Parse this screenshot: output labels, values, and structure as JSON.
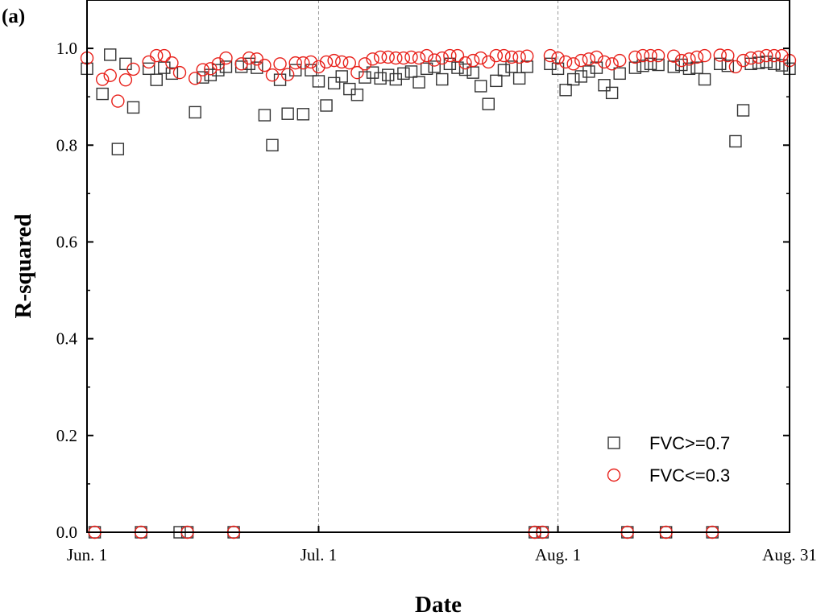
{
  "chart_data": {
    "type": "scatter",
    "panel_label": "(a)",
    "xlabel": "Date",
    "ylabel": "R-squared",
    "xlim": [
      1,
      92
    ],
    "ylim": [
      0,
      1.1
    ],
    "x_ticks": [
      {
        "day": 1,
        "label": "Jun. 1"
      },
      {
        "day": 31,
        "label": "Jul. 1"
      },
      {
        "day": 62,
        "label": "Aug. 1"
      },
      {
        "day": 92,
        "label": "Aug. 31"
      }
    ],
    "y_ticks": [
      {
        "value": 0.0,
        "label": "0.0"
      },
      {
        "value": 0.2,
        "label": "0.2"
      },
      {
        "value": 0.4,
        "label": "0.4"
      },
      {
        "value": 0.6,
        "label": "0.6"
      },
      {
        "value": 0.8,
        "label": "0.8"
      },
      {
        "value": 1.0,
        "label": "1.0"
      }
    ],
    "vertical_gridlines_at_days": [
      31,
      62
    ],
    "legend_position": "bottom-right",
    "series": [
      {
        "name": "FVC>=0.7",
        "label": "FVC>=0.7",
        "marker": "square",
        "color": "#333333",
        "points": [
          [
            1,
            0.958
          ],
          [
            2,
            0.0
          ],
          [
            3,
            0.906
          ],
          [
            4,
            0.987
          ],
          [
            5,
            0.792
          ],
          [
            6,
            0.968
          ],
          [
            7,
            0.878
          ],
          [
            8,
            0.0
          ],
          [
            9,
            0.958
          ],
          [
            10,
            0.935
          ],
          [
            11,
            0.96
          ],
          [
            12,
            0.948
          ],
          [
            13,
            0.0
          ],
          [
            14,
            0.0
          ],
          [
            15,
            0.868
          ],
          [
            16,
            0.94
          ],
          [
            17,
            0.945
          ],
          [
            18,
            0.955
          ],
          [
            19,
            0.962
          ],
          [
            20,
            0.0
          ],
          [
            21,
            0.962
          ],
          [
            22,
            0.968
          ],
          [
            23,
            0.96
          ],
          [
            24,
            0.862
          ],
          [
            25,
            0.8
          ],
          [
            26,
            0.935
          ],
          [
            27,
            0.865
          ],
          [
            28,
            0.955
          ],
          [
            29,
            0.864
          ],
          [
            30,
            0.955
          ],
          [
            31,
            0.932
          ],
          [
            32,
            0.882
          ],
          [
            33,
            0.928
          ],
          [
            34,
            0.942
          ],
          [
            35,
            0.916
          ],
          [
            36,
            0.904
          ],
          [
            37,
            0.94
          ],
          [
            38,
            0.95
          ],
          [
            39,
            0.938
          ],
          [
            40,
            0.945
          ],
          [
            41,
            0.936
          ],
          [
            42,
            0.948
          ],
          [
            43,
            0.952
          ],
          [
            44,
            0.93
          ],
          [
            45,
            0.958
          ],
          [
            46,
            0.962
          ],
          [
            47,
            0.936
          ],
          [
            48,
            0.968
          ],
          [
            49,
            0.96
          ],
          [
            50,
            0.956
          ],
          [
            51,
            0.95
          ],
          [
            52,
            0.922
          ],
          [
            53,
            0.885
          ],
          [
            54,
            0.933
          ],
          [
            55,
            0.955
          ],
          [
            56,
            0.962
          ],
          [
            57,
            0.938
          ],
          [
            58,
            0.962
          ],
          [
            59,
            0.0
          ],
          [
            60,
            0.0
          ],
          [
            61,
            0.968
          ],
          [
            62,
            0.958
          ],
          [
            63,
            0.914
          ],
          [
            64,
            0.936
          ],
          [
            65,
            0.942
          ],
          [
            66,
            0.952
          ],
          [
            67,
            0.96
          ],
          [
            68,
            0.924
          ],
          [
            69,
            0.908
          ],
          [
            70,
            0.948
          ],
          [
            71,
            0.0
          ],
          [
            72,
            0.96
          ],
          [
            73,
            0.964
          ],
          [
            74,
            0.968
          ],
          [
            75,
            0.966
          ],
          [
            76,
            0.0
          ],
          [
            77,
            0.962
          ],
          [
            78,
            0.966
          ],
          [
            79,
            0.958
          ],
          [
            80,
            0.96
          ],
          [
            81,
            0.936
          ],
          [
            82,
            0.0
          ],
          [
            83,
            0.968
          ],
          [
            84,
            0.964
          ],
          [
            85,
            0.808
          ],
          [
            86,
            0.872
          ],
          [
            87,
            0.968
          ],
          [
            88,
            0.97
          ],
          [
            89,
            0.972
          ],
          [
            90,
            0.968
          ],
          [
            91,
            0.965
          ],
          [
            92,
            0.958
          ]
        ]
      },
      {
        "name": "FVC<=0.3",
        "label": "FVC<=0.3",
        "marker": "circle",
        "color": "#e8201a",
        "points": [
          [
            1,
            0.98
          ],
          [
            2,
            0.0
          ],
          [
            3,
            0.936
          ],
          [
            4,
            0.944
          ],
          [
            5,
            0.891
          ],
          [
            6,
            0.935
          ],
          [
            7,
            0.957
          ],
          [
            8,
            0.0
          ],
          [
            9,
            0.972
          ],
          [
            10,
            0.985
          ],
          [
            11,
            0.985
          ],
          [
            12,
            0.97
          ],
          [
            13,
            0.95
          ],
          [
            14,
            0.0
          ],
          [
            15,
            0.938
          ],
          [
            16,
            0.956
          ],
          [
            17,
            0.958
          ],
          [
            18,
            0.968
          ],
          [
            19,
            0.98
          ],
          [
            20,
            0.0
          ],
          [
            21,
            0.968
          ],
          [
            22,
            0.98
          ],
          [
            23,
            0.978
          ],
          [
            24,
            0.965
          ],
          [
            25,
            0.945
          ],
          [
            26,
            0.968
          ],
          [
            27,
            0.946
          ],
          [
            28,
            0.97
          ],
          [
            29,
            0.97
          ],
          [
            30,
            0.972
          ],
          [
            31,
            0.962
          ],
          [
            32,
            0.972
          ],
          [
            33,
            0.975
          ],
          [
            34,
            0.972
          ],
          [
            35,
            0.97
          ],
          [
            36,
            0.95
          ],
          [
            37,
            0.968
          ],
          [
            38,
            0.978
          ],
          [
            39,
            0.982
          ],
          [
            40,
            0.982
          ],
          [
            41,
            0.98
          ],
          [
            42,
            0.98
          ],
          [
            43,
            0.982
          ],
          [
            44,
            0.98
          ],
          [
            45,
            0.985
          ],
          [
            46,
            0.976
          ],
          [
            47,
            0.98
          ],
          [
            48,
            0.985
          ],
          [
            49,
            0.985
          ],
          [
            50,
            0.97
          ],
          [
            51,
            0.975
          ],
          [
            52,
            0.98
          ],
          [
            53,
            0.972
          ],
          [
            54,
            0.985
          ],
          [
            55,
            0.985
          ],
          [
            56,
            0.982
          ],
          [
            57,
            0.982
          ],
          [
            58,
            0.984
          ],
          [
            59,
            0.0
          ],
          [
            60,
            0.0
          ],
          [
            61,
            0.985
          ],
          [
            62,
            0.98
          ],
          [
            63,
            0.972
          ],
          [
            64,
            0.968
          ],
          [
            65,
            0.975
          ],
          [
            66,
            0.978
          ],
          [
            67,
            0.982
          ],
          [
            68,
            0.972
          ],
          [
            69,
            0.968
          ],
          [
            70,
            0.975
          ],
          [
            71,
            0.0
          ],
          [
            72,
            0.982
          ],
          [
            73,
            0.985
          ],
          [
            74,
            0.985
          ],
          [
            75,
            0.985
          ],
          [
            76,
            0.0
          ],
          [
            77,
            0.984
          ],
          [
            78,
            0.975
          ],
          [
            79,
            0.978
          ],
          [
            80,
            0.982
          ],
          [
            81,
            0.985
          ],
          [
            82,
            0.0
          ],
          [
            83,
            0.986
          ],
          [
            84,
            0.985
          ],
          [
            85,
            0.962
          ],
          [
            86,
            0.975
          ],
          [
            87,
            0.98
          ],
          [
            88,
            0.982
          ],
          [
            89,
            0.985
          ],
          [
            90,
            0.985
          ],
          [
            91,
            0.985
          ],
          [
            92,
            0.975
          ]
        ]
      }
    ]
  }
}
